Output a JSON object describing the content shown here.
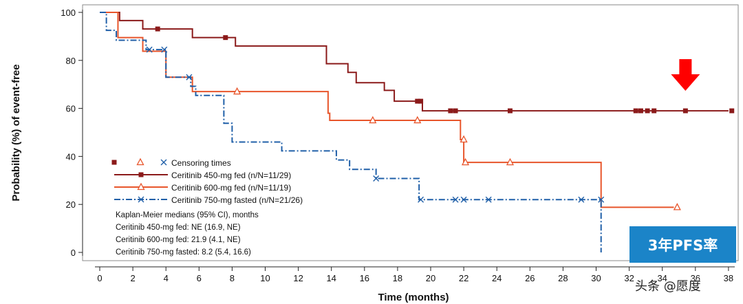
{
  "chart_data": {
    "type": "line",
    "subtype": "kaplan-meier",
    "xlabel": "Time (months)",
    "ylabel": "Probability (%) of event-free",
    "xlim": [
      0,
      38
    ],
    "ylim": [
      0,
      100
    ],
    "x_ticks": [
      0,
      2,
      4,
      6,
      8,
      10,
      12,
      14,
      16,
      18,
      20,
      22,
      24,
      26,
      28,
      30,
      32,
      34,
      36,
      38
    ],
    "y_ticks": [
      0,
      20,
      40,
      60,
      80,
      100
    ],
    "series": [
      {
        "name": "Ceritinib 450-mg fed (n/N=11/29)",
        "color": "#8b1a1a",
        "dash": "solid",
        "marker": "square",
        "steps": [
          [
            0,
            100
          ],
          [
            1.2,
            96.6
          ],
          [
            2.6,
            93.1
          ],
          [
            5.6,
            89.5
          ],
          [
            8.2,
            86
          ],
          [
            13.7,
            78.6
          ],
          [
            15,
            75
          ],
          [
            15.5,
            70.7
          ],
          [
            17.2,
            67.5
          ],
          [
            17.8,
            63
          ],
          [
            19.5,
            59
          ],
          [
            38,
            59
          ]
        ],
        "censors": [
          [
            3.5,
            93.1
          ],
          [
            7.6,
            89.5
          ],
          [
            19.2,
            63
          ],
          [
            19.4,
            63
          ],
          [
            21.2,
            59
          ],
          [
            21.5,
            59
          ],
          [
            24.8,
            59
          ],
          [
            32.4,
            59
          ],
          [
            32.7,
            59
          ],
          [
            33.1,
            59
          ],
          [
            33.5,
            59
          ],
          [
            35.4,
            59
          ],
          [
            38.2,
            59
          ]
        ]
      },
      {
        "name": "Ceritinib 600-mg fed (n/N=11/19)",
        "color": "#e8552b",
        "dash": "solid",
        "marker": "triangle",
        "steps": [
          [
            0,
            100
          ],
          [
            1.1,
            89.5
          ],
          [
            2.6,
            83.8
          ],
          [
            4,
            73
          ],
          [
            5.6,
            67
          ],
          [
            13.8,
            58
          ],
          [
            13.9,
            55
          ],
          [
            21.8,
            47
          ],
          [
            22,
            37.5
          ],
          [
            30.3,
            18.8
          ],
          [
            34.7,
            18.8
          ]
        ],
        "censors": [
          [
            8.3,
            67
          ],
          [
            16.5,
            55
          ],
          [
            19.2,
            55
          ],
          [
            22,
            47
          ],
          [
            22.1,
            37.5
          ],
          [
            24.8,
            37.5
          ],
          [
            34.9,
            18.8
          ]
        ]
      },
      {
        "name": "Ceritinib 750-mg fasted (n/N=21/26)",
        "color": "#1f5fa8",
        "dash": "dashdot",
        "marker": "x",
        "steps": [
          [
            0,
            100
          ],
          [
            0.4,
            92.5
          ],
          [
            1,
            88.4
          ],
          [
            2.8,
            84.5
          ],
          [
            4,
            73
          ],
          [
            5.5,
            69.2
          ],
          [
            5.8,
            65.4
          ],
          [
            7.5,
            53.8
          ],
          [
            8,
            46
          ],
          [
            11,
            42.3
          ],
          [
            14.3,
            38.5
          ],
          [
            15.1,
            34.6
          ],
          [
            16.7,
            30.8
          ],
          [
            19.3,
            22
          ],
          [
            30.3,
            0
          ]
        ],
        "censors": [
          [
            3,
            84.5
          ],
          [
            3.9,
            84.5
          ],
          [
            5.4,
            73
          ],
          [
            16.7,
            30.8
          ],
          [
            19.4,
            22
          ],
          [
            21.5,
            22
          ],
          [
            22,
            22
          ],
          [
            23.5,
            22
          ],
          [
            29.1,
            22
          ],
          [
            30.3,
            22
          ]
        ]
      }
    ],
    "legend": {
      "position": "bottom-left",
      "censor_label": "Censoring times",
      "entries": [
        "Ceritinib 450-mg fed (n/N=11/29)",
        "Ceritinib 600-mg fed (n/N=11/19)",
        "Ceritinib 750-mg fasted (n/N=21/26)"
      ]
    },
    "medians_text": {
      "title": "Kaplan-Meier medians (95% CI), months",
      "lines": [
        "Ceritinib 450-mg fed: NE (16.9, NE)",
        "Ceritinib 600-mg fed: 21.9 (4.1, NE)",
        "Ceritinib 750-mg fasted: 8.2 (5.4, 16.6)"
      ]
    },
    "annotation_arrow_x": 35.4
  },
  "overlay": {
    "badge_text": "3年PFS率",
    "badge_color": "#1b84c8",
    "arrow_color": "#ff0000",
    "watermark": "头条 @愿度"
  }
}
